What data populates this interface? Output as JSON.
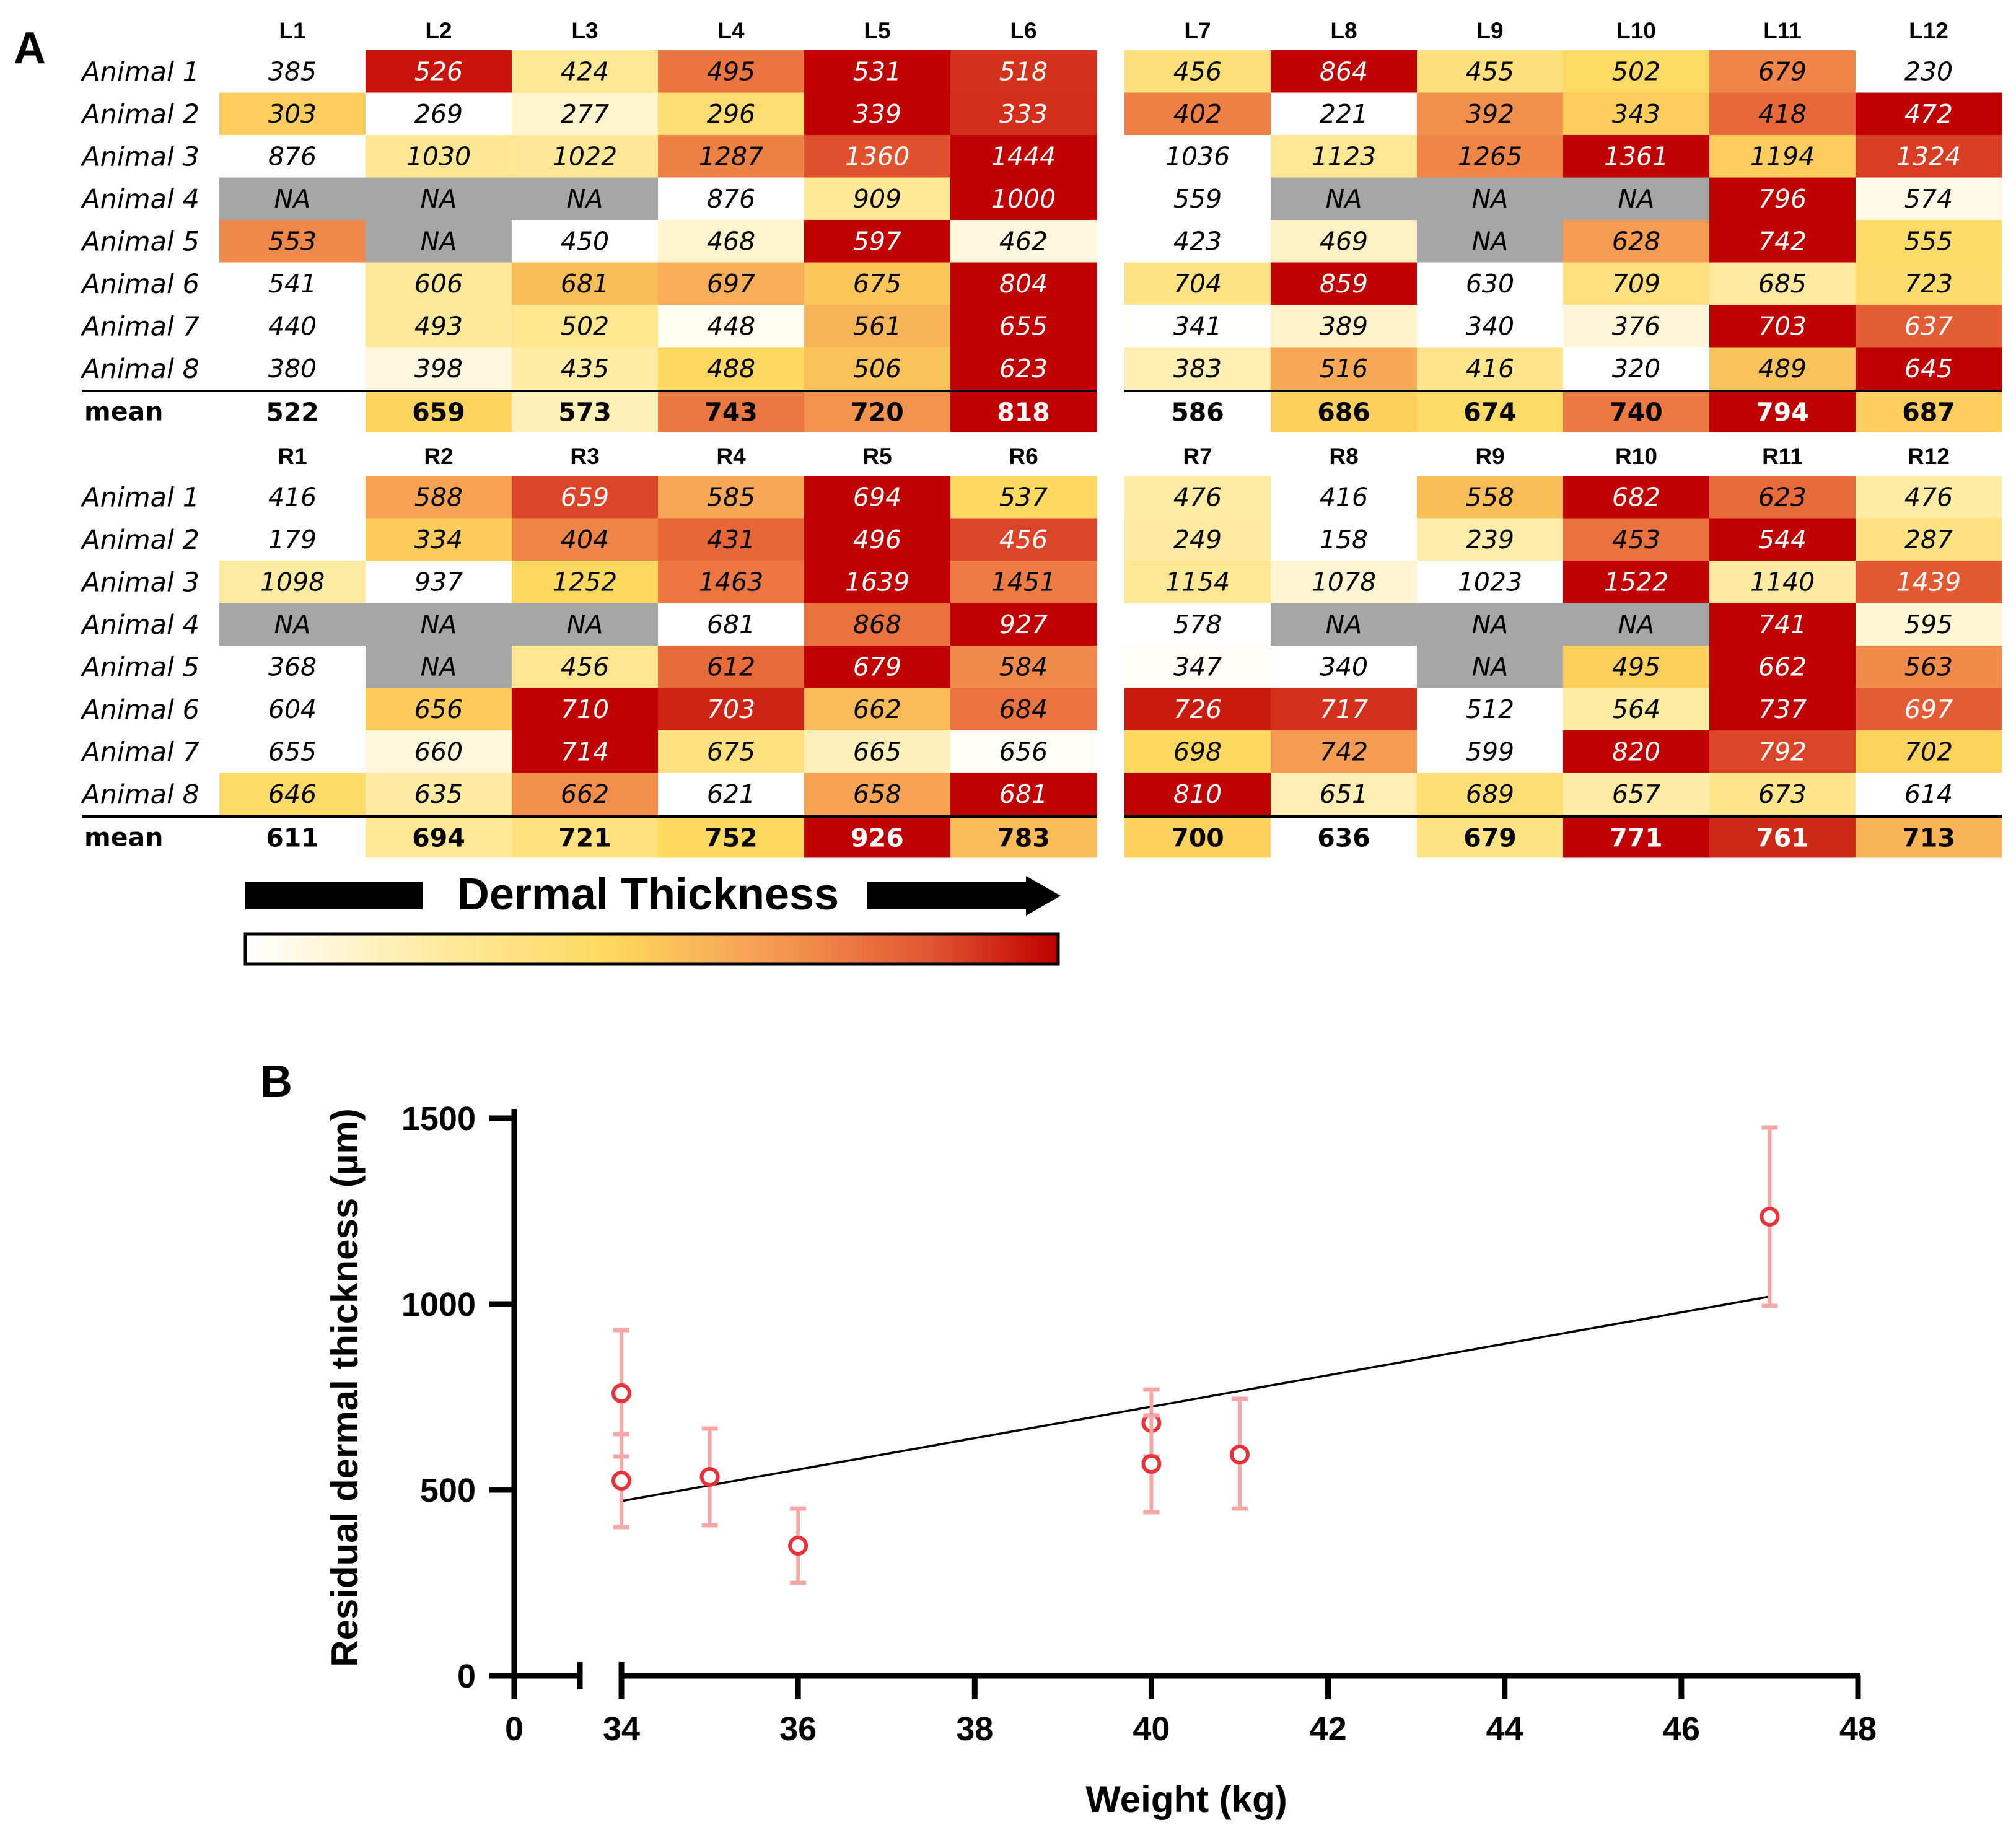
{
  "panel_a_label": "A",
  "panel_b_label": "B",
  "heatmap": {
    "row_labels": [
      "Animal 1",
      "Animal 2",
      "Animal 3",
      "Animal 4",
      "Animal 5",
      "Animal 6",
      "Animal 7",
      "Animal 8"
    ],
    "mean_label": "mean",
    "na_color": "#a6a6a6",
    "blocks": [
      {
        "columns": [
          "L1",
          "L2",
          "L3",
          "L4",
          "L5",
          "L6"
        ],
        "rows": [
          [
            "385",
            "526",
            "424",
            "495",
            "531",
            "518"
          ],
          [
            "303",
            "269",
            "277",
            "296",
            "339",
            "333"
          ],
          [
            "876",
            "1030",
            "1022",
            "1287",
            "1360",
            "1444"
          ],
          [
            "NA",
            "NA",
            "NA",
            "876",
            "909",
            "1000"
          ],
          [
            "553",
            "NA",
            "450",
            "468",
            "597",
            "462"
          ],
          [
            "541",
            "606",
            "681",
            "697",
            "675",
            "804"
          ],
          [
            "440",
            "493",
            "502",
            "448",
            "561",
            "655"
          ],
          [
            "380",
            "398",
            "435",
            "488",
            "506",
            "623"
          ]
        ],
        "means": [
          "522",
          "659",
          "573",
          "743",
          "720",
          "818"
        ]
      },
      {
        "columns": [
          "L7",
          "L8",
          "L9",
          "L10",
          "L11",
          "L12"
        ],
        "rows": [
          [
            "456",
            "864",
            "455",
            "502",
            "679",
            "230"
          ],
          [
            "402",
            "221",
            "392",
            "343",
            "418",
            "472"
          ],
          [
            "1036",
            "1123",
            "1265",
            "1361",
            "1194",
            "1324"
          ],
          [
            "559",
            "NA",
            "NA",
            "NA",
            "796",
            "574"
          ],
          [
            "423",
            "469",
            "NA",
            "628",
            "742",
            "555"
          ],
          [
            "704",
            "859",
            "630",
            "709",
            "685",
            "723"
          ],
          [
            "341",
            "389",
            "340",
            "376",
            "703",
            "637"
          ],
          [
            "383",
            "516",
            "416",
            "320",
            "489",
            "645"
          ]
        ],
        "means": [
          "586",
          "686",
          "674",
          "740",
          "794",
          "687"
        ]
      },
      {
        "columns": [
          "R1",
          "R2",
          "R3",
          "R4",
          "R5",
          "R6"
        ],
        "rows": [
          [
            "416",
            "588",
            "659",
            "585",
            "694",
            "537"
          ],
          [
            "179",
            "334",
            "404",
            "431",
            "496",
            "456"
          ],
          [
            "1098",
            "937",
            "1252",
            "1463",
            "1639",
            "1451"
          ],
          [
            "NA",
            "NA",
            "NA",
            "681",
            "868",
            "927"
          ],
          [
            "368",
            "NA",
            "456",
            "612",
            "679",
            "584"
          ],
          [
            "604",
            "656",
            "710",
            "703",
            "662",
            "684"
          ],
          [
            "655",
            "660",
            "714",
            "675",
            "665",
            "656"
          ],
          [
            "646",
            "635",
            "662",
            "621",
            "658",
            "681"
          ]
        ],
        "means": [
          "611",
          "694",
          "721",
          "752",
          "926",
          "783"
        ]
      },
      {
        "columns": [
          "R7",
          "R8",
          "R9",
          "R10",
          "R11",
          "R12"
        ],
        "rows": [
          [
            "476",
            "416",
            "558",
            "682",
            "623",
            "476"
          ],
          [
            "249",
            "158",
            "239",
            "453",
            "544",
            "287"
          ],
          [
            "1154",
            "1078",
            "1023",
            "1522",
            "1140",
            "1439"
          ],
          [
            "578",
            "NA",
            "NA",
            "NA",
            "741",
            "595"
          ],
          [
            "347",
            "340",
            "NA",
            "495",
            "662",
            "563"
          ],
          [
            "726",
            "717",
            "512",
            "564",
            "737",
            "697"
          ],
          [
            "698",
            "742",
            "599",
            "820",
            "792",
            "702"
          ],
          [
            "810",
            "651",
            "689",
            "657",
            "673",
            "614"
          ]
        ],
        "means": [
          "700",
          "636",
          "679",
          "771",
          "761",
          "713"
        ]
      }
    ],
    "scale_label": "Dermal Thickness",
    "scale_colors": [
      "#ffffff",
      "#fee99a",
      "#fdd85e",
      "#f59a52",
      "#e0522e",
      "#c00000"
    ]
  },
  "chart_data": {
    "type": "scatter",
    "title": "",
    "xlabel": "Weight (kg)",
    "ylabel": "Residual dermal thickness (µm)",
    "xlim_broken": {
      "segment1": [
        0,
        2
      ],
      "segment2": [
        34,
        48
      ]
    },
    "x_ticks": [
      "0",
      "34",
      "36",
      "38",
      "40",
      "42",
      "44",
      "46",
      "48"
    ],
    "y_ticks": [
      "0",
      "500",
      "1000",
      "1500"
    ],
    "ylim": [
      0,
      1500
    ],
    "marker_color": "#e8333a",
    "errorbar_color": "#f4a7a7",
    "points": [
      {
        "x": 34,
        "y": 760,
        "lo": 590,
        "hi": 930
      },
      {
        "x": 34,
        "y": 525,
        "lo": 400,
        "hi": 650
      },
      {
        "x": 35,
        "y": 535,
        "lo": 405,
        "hi": 665
      },
      {
        "x": 36,
        "y": 350,
        "lo": 250,
        "hi": 450
      },
      {
        "x": 40,
        "y": 680,
        "lo": 590,
        "hi": 770
      },
      {
        "x": 40,
        "y": 570,
        "lo": 440,
        "hi": 700
      },
      {
        "x": 41,
        "y": 595,
        "lo": 450,
        "hi": 745
      },
      {
        "x": 47,
        "y": 1235,
        "lo": 995,
        "hi": 1475
      }
    ],
    "fit_line": {
      "x1": 34,
      "y1": 470,
      "x2": 47,
      "y2": 1020
    }
  }
}
